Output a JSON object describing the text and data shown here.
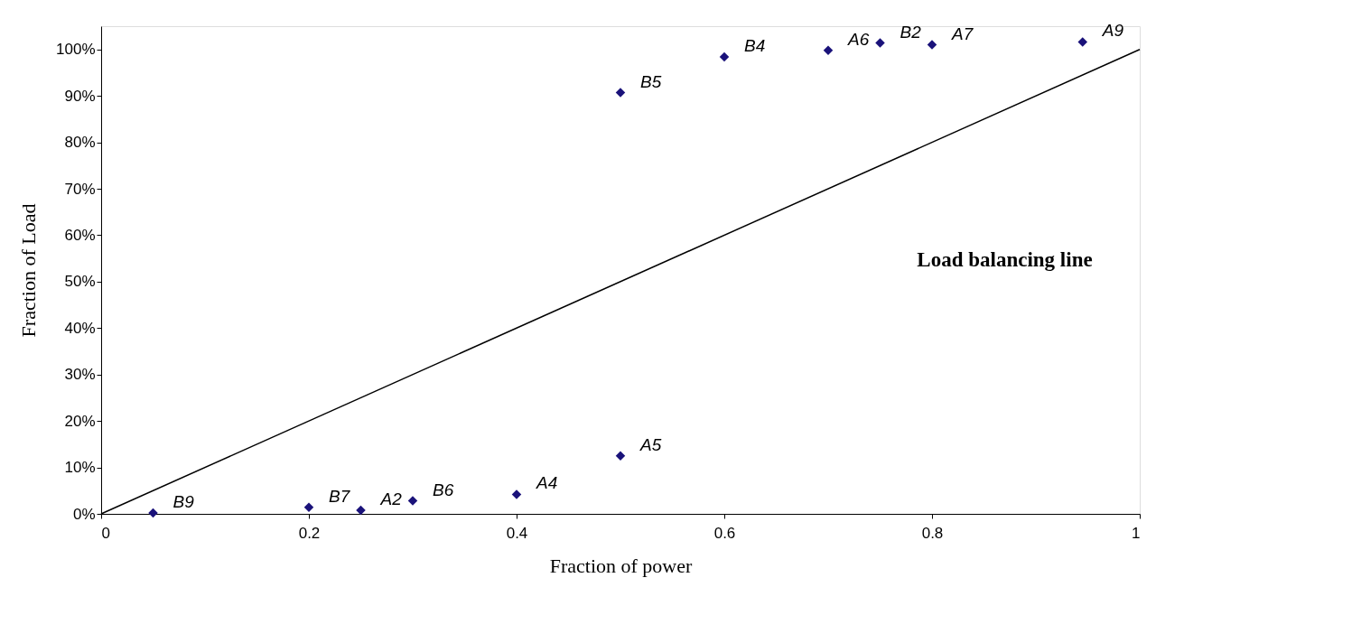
{
  "chart_data": {
    "type": "scatter",
    "xlabel": "Fraction of power",
    "ylabel": "Fraction of Load",
    "xlim": [
      0,
      1
    ],
    "xticks": [
      0,
      0.2,
      0.4,
      0.6,
      0.8,
      1
    ],
    "ylim": [
      0,
      1.05
    ],
    "yticks": [
      {
        "value": 0,
        "label": "0%"
      },
      {
        "value": 0.1,
        "label": "10%"
      },
      {
        "value": 0.2,
        "label": "20%"
      },
      {
        "value": 0.3,
        "label": "30%"
      },
      {
        "value": 0.4,
        "label": "40%"
      },
      {
        "value": 0.5,
        "label": "50%"
      },
      {
        "value": 0.6,
        "label": "60%"
      },
      {
        "value": 0.7,
        "label": "70%"
      },
      {
        "value": 0.8,
        "label": "80%"
      },
      {
        "value": 0.9,
        "label": "90%"
      },
      {
        "value": 1,
        "label": "100%"
      }
    ],
    "grid": false,
    "marker": "diamond",
    "series": [
      {
        "type": "scatter",
        "color": "#1a127a",
        "x": [
          0.05,
          0.2,
          0.25,
          0.3,
          0.4,
          0.5,
          0.5,
          0.6,
          0.7,
          0.75,
          0.8,
          0.945
        ],
        "values": [
          0.002,
          0.014,
          0.008,
          0.028,
          0.042,
          0.125,
          0.907,
          0.984,
          0.998,
          1.014,
          1.01,
          1.016
        ],
        "value_labels": [
          "B9",
          "B7",
          "A2",
          "B6",
          "A4",
          "A5",
          "B5",
          "B4",
          "A6",
          "B2",
          "A7",
          "A9"
        ]
      },
      {
        "type": "line",
        "color": "#000000",
        "x": [
          0,
          1
        ],
        "values": [
          0,
          1
        ],
        "line_style": "solid",
        "marker": "none"
      }
    ],
    "annotations": [
      "Load balancing line"
    ]
  }
}
